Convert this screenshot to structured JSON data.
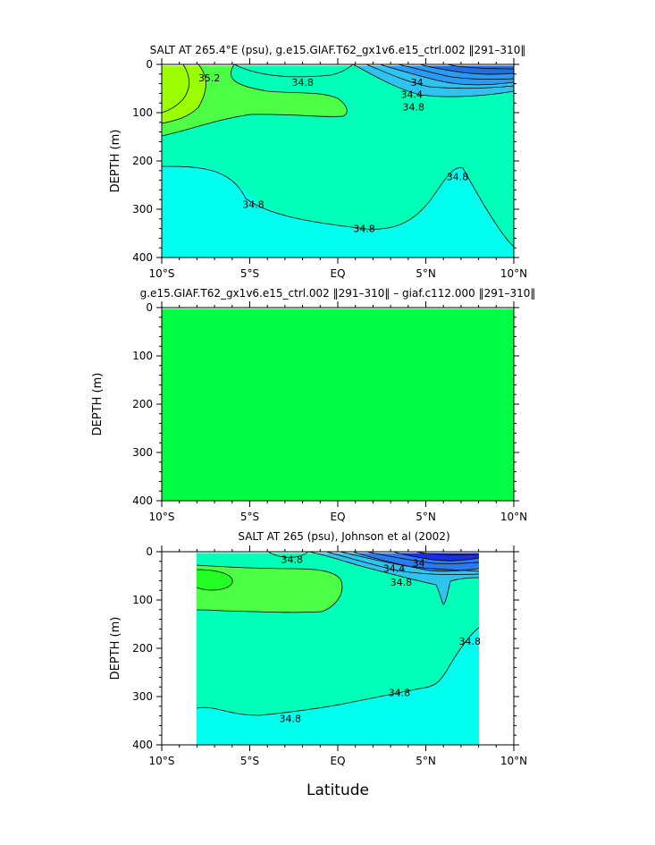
{
  "figure": {
    "xlabel": "Latitude"
  },
  "chart_data": [
    {
      "type": "heatmap",
      "title": "SALT AT 265.4°E (psu), g.e15.GIAF.T62_gx1v6.e15_ctrl.002 ‖291–310‖",
      "xlabel": "",
      "ylabel": "DEPTH  (m)",
      "xlim": [
        -10,
        10
      ],
      "ylim": [
        0,
        400
      ],
      "y_inverted": true,
      "x_ticks": [
        -10,
        -5,
        0,
        5,
        10
      ],
      "x_tick_labels": [
        "10°S",
        "5°S",
        "EQ",
        "5°N",
        "10°N"
      ],
      "y_ticks": [
        0,
        100,
        200,
        300,
        400
      ],
      "y_tick_labels": [
        "0",
        "100",
        "200",
        "300",
        "400"
      ],
      "data_extent": [
        -10,
        10
      ],
      "colors": {
        "fresh_deep": "#1f6fe0",
        "fresh_mid": "#2a9bf2",
        "fresh_light": "#2fc4ef",
        "cyan": "#00ffee",
        "aquamarine": "#00ffb8",
        "green": "#4cff44",
        "lime": "#9cff00"
      },
      "contour_labels": [
        {
          "text": "35.2",
          "x": -7.3,
          "y": 28
        },
        {
          "text": "34.8",
          "x": -2.0,
          "y": 37
        },
        {
          "text": "34",
          "x": 4.5,
          "y": 37
        },
        {
          "text": "34.4",
          "x": 4.2,
          "y": 62
        },
        {
          "text": "34.8",
          "x": 4.3,
          "y": 88
        },
        {
          "text": "34.8",
          "x": -4.8,
          "y": 290
        },
        {
          "text": "34.8",
          "x": 1.5,
          "y": 340
        },
        {
          "text": "34.8",
          "x": 6.8,
          "y": 232
        }
      ]
    },
    {
      "type": "heatmap",
      "title": "g.e15.GIAF.T62_gx1v6.e15_ctrl.002 ‖291–310‖ – giaf.c112.000 ‖291–310‖",
      "xlabel": "",
      "ylabel": "DEPTH  (m)",
      "xlim": [
        -10,
        10
      ],
      "ylim": [
        0,
        400
      ],
      "y_inverted": true,
      "x_ticks": [
        -10,
        -5,
        0,
        5,
        10
      ],
      "x_tick_labels": [
        "10°S",
        "5°S",
        "EQ",
        "5°N",
        "10°N"
      ],
      "y_ticks": [
        0,
        100,
        200,
        300,
        400
      ],
      "y_tick_labels": [
        "0",
        "100",
        "200",
        "300",
        "400"
      ],
      "data_extent": [
        -10,
        10
      ],
      "colors": {
        "fill": "#00ff44"
      },
      "contour_labels": []
    },
    {
      "type": "heatmap",
      "title": "SALT AT 265 (psu), Johnson et al (2002)",
      "xlabel": "Latitude",
      "ylabel": "DEPTH  (m)",
      "xlim": [
        -10,
        10
      ],
      "ylim": [
        0,
        400
      ],
      "y_inverted": true,
      "x_ticks": [
        -10,
        -5,
        0,
        5,
        10
      ],
      "x_tick_labels": [
        "10°S",
        "5°S",
        "EQ",
        "5°N",
        "10°N"
      ],
      "y_ticks": [
        0,
        100,
        200,
        300,
        400
      ],
      "y_tick_labels": [
        "0",
        "100",
        "200",
        "300",
        "400"
      ],
      "data_extent": [
        -8,
        8
      ],
      "colors": {
        "fresh_deep": "#1a2ee8",
        "fresh_mid": "#2a7cf0",
        "fresh_light": "#2fc4ef",
        "cyan": "#00ffee",
        "aquamarine": "#00ffb8",
        "green": "#4cff44"
      },
      "contour_labels": [
        {
          "text": "34.8",
          "x": -2.6,
          "y": 16
        },
        {
          "text": "34",
          "x": 4.6,
          "y": 23
        },
        {
          "text": "34.4",
          "x": 3.2,
          "y": 34
        },
        {
          "text": "34.8",
          "x": 3.6,
          "y": 63
        },
        {
          "text": "34.8",
          "x": -2.7,
          "y": 345
        },
        {
          "text": "34.8",
          "x": 3.5,
          "y": 292
        },
        {
          "text": "34.8",
          "x": 7.5,
          "y": 185
        }
      ]
    }
  ]
}
